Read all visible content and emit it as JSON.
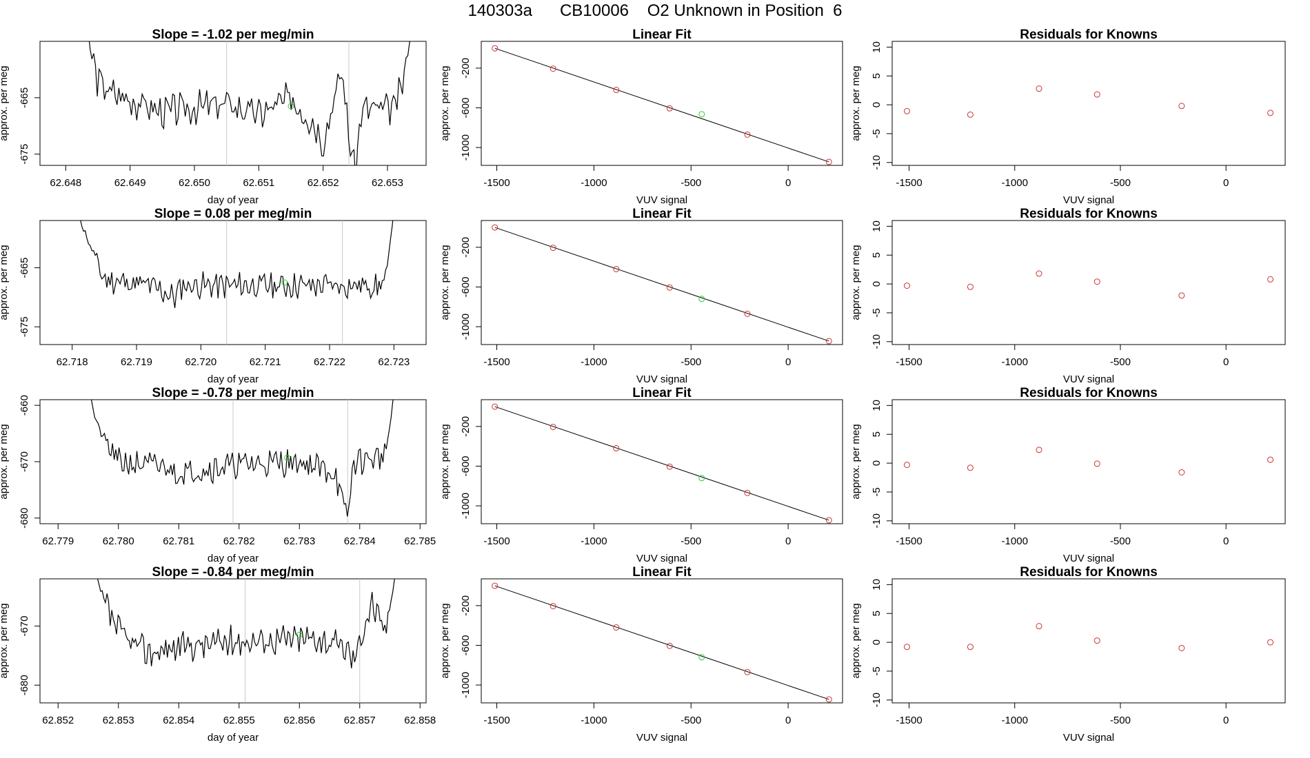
{
  "header": {
    "run_id": "140303a",
    "cylinder": "CB10006",
    "description": "O2 Unknown in Position  6"
  },
  "colors": {
    "line": "#000000",
    "known_point": "#cc3333",
    "unknown_point": "#33cc33",
    "marker_line": "#c8c8c8"
  },
  "chart_data": [
    {
      "panel": "row1-trace",
      "type": "line",
      "title": "Slope =  -1.02  per meg/min",
      "xlabel": "day of year",
      "ylabel": "approx. per meg",
      "xlim": [
        62.6476,
        62.6536
      ],
      "ylim": [
        -677,
        -655
      ],
      "xticks": [
        "62.648",
        "62.649",
        "62.650",
        "62.651",
        "62.652",
        "62.653"
      ],
      "yticks": [
        "-665",
        "-675"
      ],
      "series": [
        {
          "name": "trace",
          "x_start": 62.6481,
          "x_end": 62.6534,
          "base": -667,
          "amp": 2.4,
          "seed": 3,
          "anchors": [
            [
              62.6481,
              -650
            ],
            [
              62.6484,
              -657
            ],
            [
              62.6485,
              -662
            ],
            [
              62.6487,
              -664
            ],
            [
              62.6495,
              -667.5
            ],
            [
              62.6505,
              -666
            ],
            [
              62.651,
              -668
            ],
            [
              62.6515,
              -665
            ],
            [
              62.6519,
              -670
            ],
            [
              62.652,
              -673
            ],
            [
              62.6521,
              -668
            ],
            [
              62.6523,
              -660
            ],
            [
              62.6524,
              -672
            ],
            [
              62.6525,
              -678
            ],
            [
              62.6526,
              -667
            ],
            [
              62.6531,
              -667
            ],
            [
              62.6532,
              -664
            ],
            [
              62.6533,
              -658
            ],
            [
              62.6534,
              -650
            ]
          ]
        }
      ],
      "markers_x": [
        62.6505,
        62.6524
      ],
      "highlight": {
        "x": 62.6515,
        "y": -666.5
      }
    },
    {
      "panel": "row1-fit",
      "type": "scatter",
      "title": "Linear Fit",
      "xlabel": "VUV signal",
      "ylabel": "approx. per meg",
      "xlim": [
        -1580,
        280
      ],
      "ylim": [
        -1180,
        70
      ],
      "xticks": [
        "-1500",
        "-1000",
        "-500",
        "0"
      ],
      "yticks": [
        "-200",
        "-600",
        "-1000"
      ],
      "known_x": [
        -1510,
        -1210,
        -885,
        -610,
        -210,
        210
      ],
      "known_y": [
        0,
        -205,
        -420,
        -605,
        -870,
        -1145
      ],
      "unknown": {
        "x": -445,
        "y": -665
      },
      "fit": {
        "x": [
          -1510,
          210
        ],
        "y": [
          0,
          -1145
        ]
      }
    },
    {
      "panel": "row1-residuals",
      "type": "scatter",
      "title": "Residuals for Knowns",
      "xlabel": "VUV signal",
      "ylabel": "approx. per meg",
      "xlim": [
        -1580,
        280
      ],
      "ylim": [
        -10.5,
        11
      ],
      "xticks": [
        "-1500",
        "-1000",
        "-500",
        "0"
      ],
      "yticks": [
        "10",
        "5",
        "0",
        "-5",
        "-10"
      ],
      "x": [
        -1510,
        -1210,
        -885,
        -610,
        -210,
        210
      ],
      "y": [
        -1.1,
        -1.7,
        2.8,
        1.8,
        -0.2,
        -1.4
      ]
    },
    {
      "panel": "row2-trace",
      "type": "line",
      "title": "Slope =  0.08  per meg/min",
      "xlabel": "day of year",
      "ylabel": "approx. per meg",
      "xlim": [
        62.7175,
        62.7235
      ],
      "ylim": [
        -678,
        -657
      ],
      "xticks": [
        "62.718",
        "62.719",
        "62.720",
        "62.721",
        "62.722",
        "62.723"
      ],
      "yticks": [
        "-665",
        "-675"
      ],
      "series": [
        {
          "name": "trace",
          "x_start": 62.7181,
          "x_end": 62.723,
          "base": -668,
          "amp": 1.8,
          "seed": 11,
          "anchors": [
            [
              62.7181,
              -656
            ],
            [
              62.7182,
              -659
            ],
            [
              62.7183,
              -662
            ],
            [
              62.7185,
              -667
            ],
            [
              62.7192,
              -668
            ],
            [
              62.7196,
              -670
            ],
            [
              62.7197,
              -668
            ],
            [
              62.7204,
              -668
            ],
            [
              62.7215,
              -668
            ],
            [
              62.7228,
              -668
            ],
            [
              62.7229,
              -665
            ],
            [
              62.723,
              -655
            ]
          ]
        }
      ],
      "markers_x": [
        62.7204,
        62.7222
      ],
      "highlight": {
        "x": 62.7213,
        "y": -667.5
      }
    },
    {
      "panel": "row2-fit",
      "type": "scatter",
      "title": "Linear Fit",
      "xlabel": "VUV signal",
      "ylabel": "approx. per meg",
      "xlim": [
        -1580,
        280
      ],
      "ylim": [
        -1180,
        70
      ],
      "xticks": [
        "-1500",
        "-1000",
        "-500",
        "0"
      ],
      "yticks": [
        "-200",
        "-600",
        "-1000"
      ],
      "known_x": [
        -1510,
        -1210,
        -885,
        -610,
        -210,
        210
      ],
      "known_y": [
        0,
        -205,
        -420,
        -605,
        -870,
        -1145
      ],
      "unknown": {
        "x": -445,
        "y": -720
      },
      "fit": {
        "x": [
          -1510,
          210
        ],
        "y": [
          0,
          -1145
        ]
      }
    },
    {
      "panel": "row2-residuals",
      "type": "scatter",
      "title": "Residuals for Knowns",
      "xlabel": "VUV signal",
      "ylabel": "approx. per meg",
      "xlim": [
        -1580,
        280
      ],
      "ylim": [
        -10.5,
        11
      ],
      "xticks": [
        "-1500",
        "-1000",
        "-500",
        "0"
      ],
      "yticks": [
        "10",
        "5",
        "0",
        "-5",
        "-10"
      ],
      "x": [
        -1510,
        -1210,
        -885,
        -610,
        -210,
        210
      ],
      "y": [
        -0.3,
        -0.5,
        1.8,
        0.4,
        -2.0,
        0.8
      ]
    },
    {
      "panel": "row3-trace",
      "type": "line",
      "title": "Slope =  -0.78  per meg/min",
      "xlabel": "day of year",
      "ylabel": "approx. per meg",
      "xlim": [
        62.7787,
        62.7851
      ],
      "ylim": [
        -681,
        -659
      ],
      "xticks": [
        "62.779",
        "62.780",
        "62.781",
        "62.782",
        "62.783",
        "62.784",
        "62.785"
      ],
      "yticks": [
        "-660",
        "-670",
        "-680"
      ],
      "series": [
        {
          "name": "trace",
          "x_start": 62.7795,
          "x_end": 62.7846,
          "base": -670.5,
          "amp": 2.0,
          "seed": 21,
          "anchors": [
            [
              62.7795,
              -655
            ],
            [
              62.7796,
              -662
            ],
            [
              62.7798,
              -667
            ],
            [
              62.78,
              -670
            ],
            [
              62.7808,
              -671
            ],
            [
              62.781,
              -672
            ],
            [
              62.782,
              -670.5
            ],
            [
              62.783,
              -670
            ],
            [
              62.7836,
              -672
            ],
            [
              62.7837,
              -677
            ],
            [
              62.7838,
              -680
            ],
            [
              62.7839,
              -670
            ],
            [
              62.7844,
              -669
            ],
            [
              62.7845,
              -664
            ],
            [
              62.7846,
              -655
            ]
          ]
        }
      ],
      "markers_x": [
        62.7819,
        62.7838
      ],
      "highlight": {
        "x": 62.7828,
        "y": -669.3
      }
    },
    {
      "panel": "row3-fit",
      "type": "scatter",
      "title": "Linear Fit",
      "xlabel": "VUV signal",
      "ylabel": "approx. per meg",
      "xlim": [
        -1580,
        280
      ],
      "ylim": [
        -1180,
        70
      ],
      "xticks": [
        "-1500",
        "-1000",
        "-500",
        "0"
      ],
      "yticks": [
        "-200",
        "-600",
        "-1000"
      ],
      "known_x": [
        -1510,
        -1210,
        -885,
        -610,
        -210,
        210
      ],
      "known_y": [
        0,
        -205,
        -420,
        -605,
        -870,
        -1145
      ],
      "unknown": {
        "x": -445,
        "y": -720
      },
      "fit": {
        "x": [
          -1510,
          210
        ],
        "y": [
          0,
          -1145
        ]
      }
    },
    {
      "panel": "row3-residuals",
      "type": "scatter",
      "title": "Residuals for Knowns",
      "xlabel": "VUV signal",
      "ylabel": "approx. per meg",
      "xlim": [
        -1580,
        280
      ],
      "ylim": [
        -10.5,
        11
      ],
      "xticks": [
        "-1500",
        "-1000",
        "-500",
        "0"
      ],
      "yticks": [
        "10",
        "5",
        "0",
        "-5",
        "-10"
      ],
      "x": [
        -1510,
        -1210,
        -885,
        -610,
        -210,
        210
      ],
      "y": [
        -0.3,
        -0.8,
        2.3,
        -0.1,
        -1.6,
        0.6
      ]
    },
    {
      "panel": "row4-trace",
      "type": "line",
      "title": "Slope =  -0.84  per meg/min",
      "xlabel": "day of year",
      "ylabel": "approx. per meg",
      "xlim": [
        62.8517,
        62.8581
      ],
      "ylim": [
        -683,
        -662
      ],
      "xticks": [
        "62.852",
        "62.853",
        "62.854",
        "62.855",
        "62.856",
        "62.857",
        "62.858"
      ],
      "yticks": [
        "-670",
        "-680"
      ],
      "series": [
        {
          "name": "trace",
          "x_start": 62.8526,
          "x_end": 62.8576,
          "base": -673,
          "amp": 2.1,
          "seed": 37,
          "anchors": [
            [
              62.8526,
              -660
            ],
            [
              62.8527,
              -664
            ],
            [
              62.8529,
              -669
            ],
            [
              62.8531,
              -672
            ],
            [
              62.8535,
              -674.5
            ],
            [
              62.854,
              -673.5
            ],
            [
              62.855,
              -672.5
            ],
            [
              62.8563,
              -672
            ],
            [
              62.8568,
              -674
            ],
            [
              62.8569,
              -676
            ],
            [
              62.8571,
              -669
            ],
            [
              62.8572,
              -666
            ],
            [
              62.8574,
              -671
            ],
            [
              62.8575,
              -667
            ],
            [
              62.8576,
              -660
            ]
          ]
        }
      ],
      "markers_x": [
        62.8551,
        62.857
      ],
      "highlight": {
        "x": 62.856,
        "y": -671.5
      }
    },
    {
      "panel": "row4-fit",
      "type": "scatter",
      "title": "Linear Fit",
      "xlabel": "VUV signal",
      "ylabel": "approx. per meg",
      "xlim": [
        -1580,
        280
      ],
      "ylim": [
        -1180,
        70
      ],
      "xticks": [
        "-1500",
        "-1000",
        "-500",
        "0"
      ],
      "yticks": [
        "-200",
        "-600",
        "-1000"
      ],
      "known_x": [
        -1510,
        -1210,
        -885,
        -610,
        -210,
        210
      ],
      "known_y": [
        0,
        -205,
        -420,
        -605,
        -870,
        -1145
      ],
      "unknown": {
        "x": -445,
        "y": -720
      },
      "fit": {
        "x": [
          -1510,
          210
        ],
        "y": [
          0,
          -1145
        ]
      }
    },
    {
      "panel": "row4-residuals",
      "type": "scatter",
      "title": "Residuals for Knowns",
      "xlabel": "VUV signal",
      "ylabel": "approx. per meg",
      "xlim": [
        -1580,
        280
      ],
      "ylim": [
        -10.5,
        11
      ],
      "xticks": [
        "-1500",
        "-1000",
        "-500",
        "0"
      ],
      "yticks": [
        "10",
        "5",
        "0",
        "-5",
        "-10"
      ],
      "x": [
        -1510,
        -1210,
        -885,
        -610,
        -210,
        210
      ],
      "y": [
        -0.8,
        -0.8,
        2.8,
        0.3,
        -1.0,
        0.0
      ]
    }
  ]
}
